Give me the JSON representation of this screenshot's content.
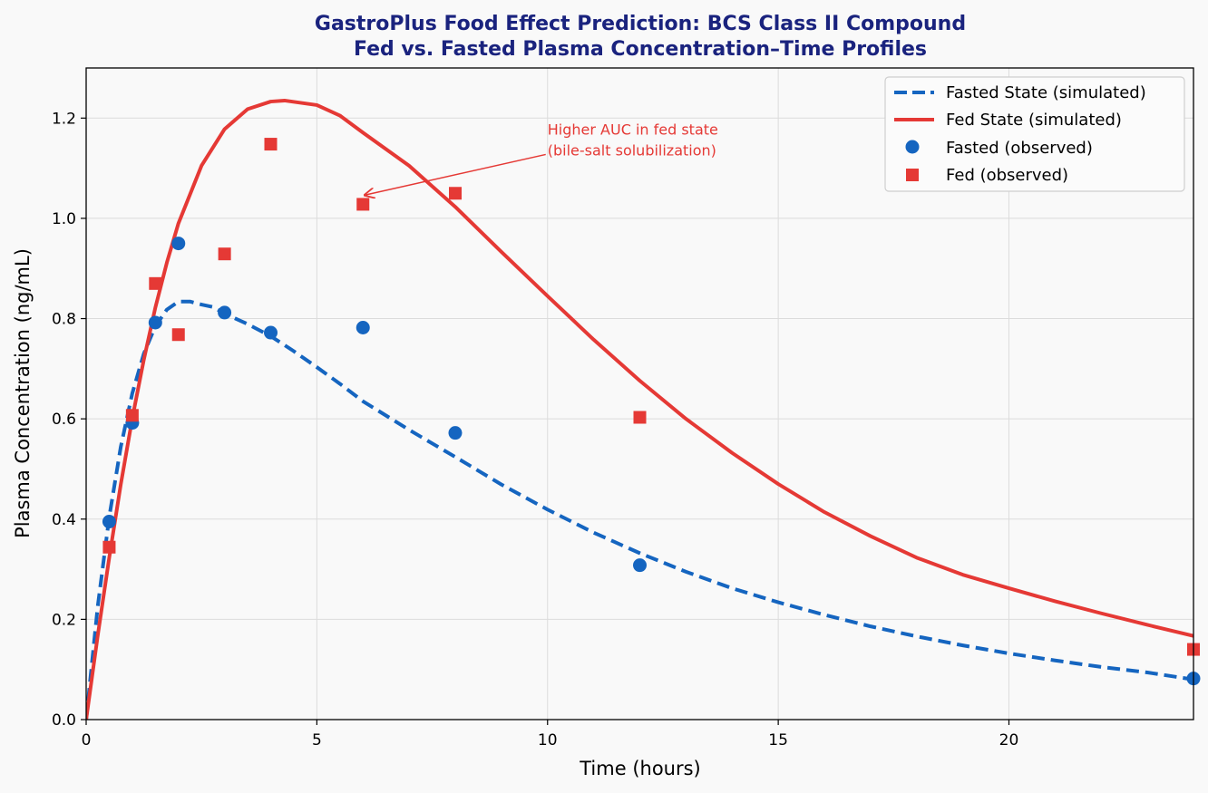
{
  "chart_data": {
    "type": "line",
    "title_line1": "GastroPlus Food Effect Prediction: BCS Class II Compound",
    "title_line2": "Fed vs. Fasted Plasma Concentration–Time Profiles",
    "xlabel": "Time (hours)",
    "ylabel": "Plasma Concentration (ng/mL)",
    "xlim": [
      0,
      24
    ],
    "ylim": [
      0,
      1.3
    ],
    "xticks": [
      0,
      5,
      10,
      15,
      20
    ],
    "xtick_labels": [
      "0",
      "5",
      "10",
      "15",
      "20"
    ],
    "yticks": [
      0.0,
      0.2,
      0.4,
      0.6,
      0.8,
      1.0,
      1.2
    ],
    "ytick_labels": [
      "0.0",
      "0.2",
      "0.4",
      "0.6",
      "0.8",
      "1.0",
      "1.2"
    ],
    "grid": true,
    "legend_position": "top-right",
    "series": [
      {
        "name": "Fasted State (simulated)",
        "kind": "line",
        "style": "dashed",
        "color": "#1565c0",
        "x": [
          0,
          0.25,
          0.5,
          0.75,
          1,
          1.25,
          1.5,
          1.75,
          2,
          2.25,
          2.5,
          2.75,
          3,
          3.5,
          4,
          4.5,
          5,
          5.5,
          6,
          7,
          8,
          9,
          10,
          11,
          12,
          13,
          14,
          15,
          16,
          17,
          18,
          19,
          20,
          21,
          22,
          23,
          24
        ],
        "y": [
          0,
          0.225,
          0.404,
          0.544,
          0.651,
          0.73,
          0.785,
          0.818,
          0.834,
          0.834,
          0.828,
          0.823,
          0.81,
          0.789,
          0.765,
          0.735,
          0.703,
          0.67,
          0.635,
          0.578,
          0.524,
          0.469,
          0.419,
          0.373,
          0.332,
          0.295,
          0.262,
          0.234,
          0.209,
          0.186,
          0.166,
          0.148,
          0.132,
          0.118,
          0.105,
          0.094,
          0.08
        ]
      },
      {
        "name": "Fed State (simulated)",
        "kind": "line",
        "style": "solid",
        "color": "#e53935",
        "x": [
          0,
          0.25,
          0.5,
          0.75,
          1,
          1.25,
          1.5,
          1.75,
          2,
          2.5,
          3,
          3.5,
          4,
          4.3,
          5,
          5.5,
          6,
          7,
          8,
          9,
          10,
          11,
          12,
          13,
          14,
          15,
          16,
          17,
          18,
          19,
          20,
          21,
          22,
          23,
          24
        ],
        "y": [
          0,
          0.167,
          0.323,
          0.469,
          0.601,
          0.718,
          0.822,
          0.912,
          0.99,
          1.105,
          1.178,
          1.218,
          1.233,
          1.235,
          1.226,
          1.205,
          1.171,
          1.105,
          1.023,
          0.933,
          0.845,
          0.758,
          0.676,
          0.6,
          0.532,
          0.47,
          0.414,
          0.366,
          0.323,
          0.289,
          0.262,
          0.236,
          0.212,
          0.189,
          0.167
        ]
      },
      {
        "name": "Fasted (observed)",
        "kind": "scatter",
        "marker": "circle",
        "color": "#1565c0",
        "x": [
          0.5,
          1,
          1.5,
          2,
          3,
          4,
          6,
          8,
          12,
          24
        ],
        "y": [
          0.395,
          0.592,
          0.792,
          0.95,
          0.812,
          0.772,
          0.782,
          0.572,
          0.308,
          0.082
        ]
      },
      {
        "name": "Fed (observed)",
        "kind": "scatter",
        "marker": "square",
        "color": "#e53935",
        "x": [
          0.5,
          1,
          1.5,
          2,
          3,
          4,
          6,
          8,
          12,
          24
        ],
        "y": [
          0.344,
          0.607,
          0.87,
          0.768,
          0.929,
          1.148,
          1.028,
          1.05,
          0.603,
          0.14
        ]
      }
    ],
    "annotation": {
      "line1": "Higher AUC in fed state",
      "line2": "(bile-salt solubilization)",
      "text_x": 10.0,
      "text_y": 1.16,
      "arrow_to_x": 6.0,
      "arrow_to_y": 1.05,
      "color": "#e53935"
    }
  }
}
